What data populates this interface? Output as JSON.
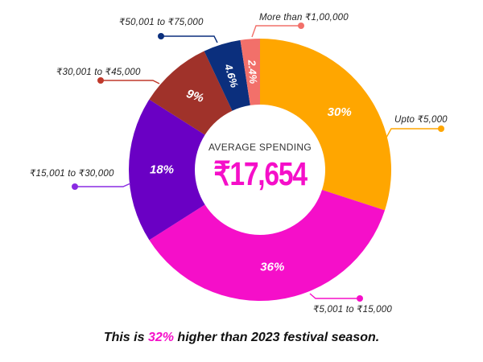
{
  "chart_data": {
    "type": "pie",
    "variant": "donut",
    "title": "",
    "center_label": "AVERAGE SPENDING",
    "center_value": "₹17,654",
    "categories": [
      "Upto ₹5,000",
      "₹5,001 to ₹15,000",
      "₹15,001 to ₹30,000",
      "₹30,001 to ₹45,000",
      "₹50,001 to ₹75,000",
      "More than ₹1,00,000"
    ],
    "values": [
      30,
      36,
      18,
      9,
      4.6,
      2.4
    ],
    "value_labels": [
      "30%",
      "36%",
      "18%",
      "9%",
      "4.6%",
      "2.4%"
    ],
    "colors": [
      "#ffa600",
      "#f50fc9",
      "#6a00c4",
      "#a0322a",
      "#0b2f7d",
      "#f2706a"
    ],
    "unit": "%"
  },
  "center": {
    "label": "AVERAGE SPENDING",
    "value": "₹17,654"
  },
  "callouts": [
    {
      "label": "Upto ₹5,000",
      "color": "#ffa600"
    },
    {
      "label": "₹5,001 to ₹15,000",
      "color": "#f50fc9"
    },
    {
      "label": "₹15,001 to ₹30,000",
      "color": "#8a2be2"
    },
    {
      "label": "₹30,001 to ₹45,000",
      "color": "#c0392b"
    },
    {
      "label": "₹50,001 to ₹75,000",
      "color": "#0b2f7d"
    },
    {
      "label": "More than ₹1,00,000",
      "color": "#f2706a"
    }
  ],
  "footer": {
    "prefix": "This is ",
    "highlight": "32%",
    "suffix": " higher than 2023 festival season."
  },
  "colors": {
    "accent": "#f50fc9",
    "text": "#111111"
  }
}
